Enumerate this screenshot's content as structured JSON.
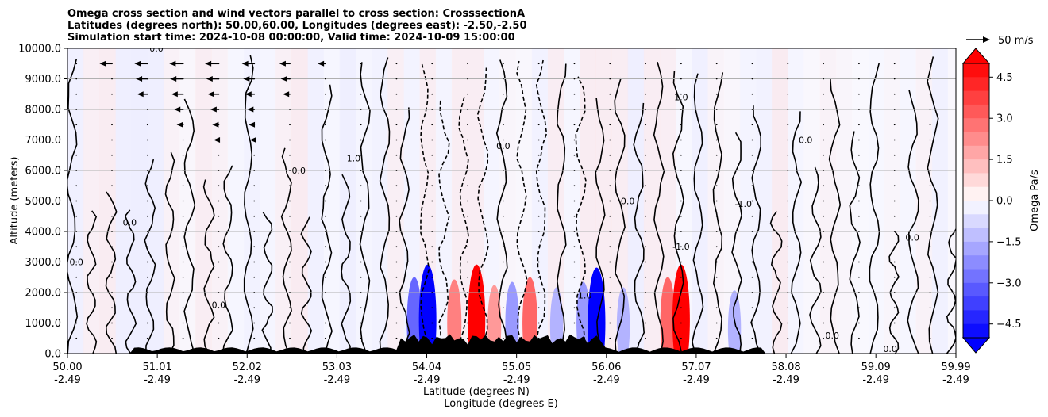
{
  "chart_data": {
    "type": "contour",
    "title_lines": [
      "Omega cross section and wind vectors parallel to cross section: CrosssectionA",
      "Latitudes (degrees north): 50.00,60.00, Longitudes (degrees east): -2.50,-2.50",
      "Simulation start time: 2024-10-08 00:00:00, Valid time: 2024-10-09 15:00:00"
    ],
    "xlabel_lines": [
      "Latitude (degrees N)",
      "Longitude (degrees E)"
    ],
    "ylabel": "Altitude (meters)",
    "xlim": [
      50.0,
      59.99
    ],
    "ylim": [
      0,
      10000
    ],
    "x_ticks": [
      {
        "value": 50.0,
        "lat": "50.00",
        "lon": "-2.49"
      },
      {
        "value": 51.01,
        "lat": "51.01",
        "lon": "-2.49"
      },
      {
        "value": 52.02,
        "lat": "52.02",
        "lon": "-2.49"
      },
      {
        "value": 53.03,
        "lat": "53.03",
        "lon": "-2.49"
      },
      {
        "value": 54.04,
        "lat": "54.04",
        "lon": "-2.49"
      },
      {
        "value": 55.05,
        "lat": "55.05",
        "lon": "-2.49"
      },
      {
        "value": 56.06,
        "lat": "56.06",
        "lon": "-2.49"
      },
      {
        "value": 57.07,
        "lat": "57.07",
        "lon": "-2.49"
      },
      {
        "value": 58.08,
        "lat": "58.08",
        "lon": "-2.49"
      },
      {
        "value": 59.09,
        "lat": "59.09",
        "lon": "-2.49"
      },
      {
        "value": 59.99,
        "lat": "59.99",
        "lon": "-2.49"
      }
    ],
    "y_ticks": [
      {
        "value": 0,
        "label": "0.0"
      },
      {
        "value": 1000,
        "label": "1000.0"
      },
      {
        "value": 2000,
        "label": "2000.0"
      },
      {
        "value": 3000,
        "label": "3000.0"
      },
      {
        "value": 4000,
        "label": "4000.0"
      },
      {
        "value": 5000,
        "label": "5000.0"
      },
      {
        "value": 6000,
        "label": "6000.0"
      },
      {
        "value": 7000,
        "label": "7000.0"
      },
      {
        "value": 8000,
        "label": "8000.0"
      },
      {
        "value": 9000,
        "label": "9000.0"
      },
      {
        "value": 10000,
        "label": "10000.0"
      }
    ],
    "horizontal_gridlines": true,
    "colorbar": {
      "label": "Omega Pa/s",
      "vmin": -5.0,
      "vmax": 5.0,
      "ticks": [
        {
          "value": 4.5,
          "label": "4.5"
        },
        {
          "value": 3.0,
          "label": "3.0"
        },
        {
          "value": 1.5,
          "label": "1.5"
        },
        {
          "value": 0.0,
          "label": "0.0"
        },
        {
          "value": -1.5,
          "label": "−1.5"
        },
        {
          "value": -3.0,
          "label": "−3.0"
        },
        {
          "value": -4.5,
          "label": "−4.5"
        }
      ],
      "extend": "both",
      "negative_color": "#0000ff",
      "positive_color": "#ff0000"
    },
    "quiver_key": {
      "label": "50 m/s",
      "speed": 50
    },
    "wind_vectors": [
      {
        "lat": 50.5,
        "alt": 9500,
        "u": -30
      },
      {
        "lat": 50.9,
        "alt": 9500,
        "u": -32
      },
      {
        "lat": 51.3,
        "alt": 9500,
        "u": -34
      },
      {
        "lat": 51.7,
        "alt": 9500,
        "u": -34
      },
      {
        "lat": 52.1,
        "alt": 9500,
        "u": -30
      },
      {
        "lat": 52.5,
        "alt": 9500,
        "u": -24
      },
      {
        "lat": 52.9,
        "alt": 9500,
        "u": -16
      },
      {
        "lat": 50.9,
        "alt": 9000,
        "u": -28
      },
      {
        "lat": 51.3,
        "alt": 9000,
        "u": -32
      },
      {
        "lat": 51.7,
        "alt": 9000,
        "u": -30
      },
      {
        "lat": 52.1,
        "alt": 9000,
        "u": -26
      },
      {
        "lat": 52.5,
        "alt": 9000,
        "u": -20
      },
      {
        "lat": 50.9,
        "alt": 8500,
        "u": -24
      },
      {
        "lat": 51.3,
        "alt": 8500,
        "u": -28
      },
      {
        "lat": 51.7,
        "alt": 8500,
        "u": -26
      },
      {
        "lat": 52.1,
        "alt": 8500,
        "u": -20
      },
      {
        "lat": 52.5,
        "alt": 8500,
        "u": -14
      },
      {
        "lat": 51.3,
        "alt": 8000,
        "u": -20
      },
      {
        "lat": 51.7,
        "alt": 8000,
        "u": -18
      },
      {
        "lat": 52.1,
        "alt": 8000,
        "u": -14
      },
      {
        "lat": 51.3,
        "alt": 7500,
        "u": -12
      },
      {
        "lat": 51.7,
        "alt": 7500,
        "u": -12
      },
      {
        "lat": 52.1,
        "alt": 7500,
        "u": -10
      },
      {
        "lat": 51.7,
        "alt": 7000,
        "u": -8
      },
      {
        "lat": 52.1,
        "alt": 7000,
        "u": -6
      }
    ],
    "omega_field": [
      {
        "lat": 53.9,
        "alt": 1000,
        "value": -3.0
      },
      {
        "lat": 54.05,
        "alt": 1100,
        "value": -5.0
      },
      {
        "lat": 54.35,
        "alt": 1000,
        "value": 2.5
      },
      {
        "lat": 54.6,
        "alt": 1100,
        "value": 5.0
      },
      {
        "lat": 54.8,
        "alt": 900,
        "value": 2.0
      },
      {
        "lat": 55.0,
        "alt": 1000,
        "value": -2.0
      },
      {
        "lat": 55.2,
        "alt": 1000,
        "value": 3.0
      },
      {
        "lat": 55.5,
        "alt": 900,
        "value": -1.5
      },
      {
        "lat": 55.8,
        "alt": 1000,
        "value": -2.0
      },
      {
        "lat": 55.95,
        "alt": 1000,
        "value": -5.0
      },
      {
        "lat": 56.25,
        "alt": 900,
        "value": -1.5
      },
      {
        "lat": 56.75,
        "alt": 1000,
        "value": 3.0
      },
      {
        "lat": 56.9,
        "alt": 1100,
        "value": 5.0
      },
      {
        "lat": 57.5,
        "alt": 800,
        "value": -1.5
      }
    ],
    "contour_levels": [
      -1.0,
      0.0,
      1.0
    ],
    "contour_labels": [
      {
        "lat": 51.0,
        "alt": 9900,
        "text": "0.0"
      },
      {
        "lat": 53.2,
        "alt": 6300,
        "text": "-1.0"
      },
      {
        "lat": 54.9,
        "alt": 6700,
        "text": "0.0"
      },
      {
        "lat": 56.3,
        "alt": 4900,
        "text": "0.0"
      },
      {
        "lat": 56.9,
        "alt": 8300,
        "text": "1.0"
      },
      {
        "lat": 57.6,
        "alt": 4800,
        "text": "-1.0"
      },
      {
        "lat": 56.9,
        "alt": 3400,
        "text": "-1.0"
      },
      {
        "lat": 59.25,
        "alt": 50,
        "text": "0.0"
      },
      {
        "lat": 50.1,
        "alt": 2900,
        "text": "0.0"
      },
      {
        "lat": 50.7,
        "alt": 4200,
        "text": "0.0"
      },
      {
        "lat": 52.6,
        "alt": 5900,
        "text": "0.0"
      },
      {
        "lat": 58.3,
        "alt": 6900,
        "text": "0.0"
      },
      {
        "lat": 58.6,
        "alt": 500,
        "text": "0.0"
      },
      {
        "lat": 59.5,
        "alt": 3700,
        "text": "0.0"
      },
      {
        "lat": 51.7,
        "alt": 1500,
        "text": "0.0"
      },
      {
        "lat": 55.8,
        "alt": 1800,
        "text": "-1.0"
      }
    ]
  }
}
